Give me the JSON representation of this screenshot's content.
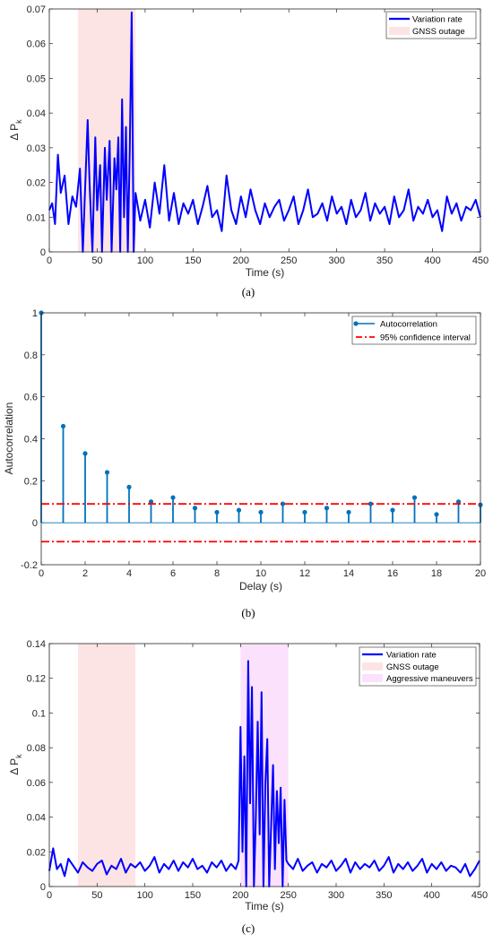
{
  "colors": {
    "line": "#0000ff",
    "stem": "#0072bd",
    "conf": "#ff0000",
    "gnss_patch": "#fde4e4",
    "aggr_patch": "#fbe1fb",
    "axis": "#262626"
  },
  "chart_data": [
    {
      "id": "a",
      "type": "line",
      "panel_label": "(a)",
      "xlabel": "Time (s)",
      "ylabel_main": "Δ P",
      "ylabel_sub": "k",
      "xlim": [
        0,
        450
      ],
      "ylim": [
        0,
        0.07
      ],
      "xticks": [
        0,
        50,
        100,
        150,
        200,
        250,
        300,
        350,
        400,
        450
      ],
      "yticks": [
        0,
        0.01,
        0.02,
        0.03,
        0.04,
        0.05,
        0.06,
        0.07
      ],
      "yticklabels": [
        "0",
        "0.01",
        "0.02",
        "0.03",
        "0.04",
        "0.05",
        "0.06",
        "0.07"
      ],
      "legend_position": "top-right",
      "shaded_regions": [
        {
          "name": "GNSS outage",
          "x": [
            30,
            90
          ],
          "color_key": "gnss_patch"
        }
      ],
      "series": [
        {
          "name": "Variation rate",
          "x": [
            0,
            3,
            6,
            9,
            12,
            16,
            20,
            24,
            28,
            32,
            35,
            37,
            40,
            42,
            45,
            48,
            50,
            53,
            55,
            58,
            60,
            63,
            65,
            68,
            70,
            72,
            74,
            76,
            78,
            80,
            82,
            84,
            86,
            88,
            90,
            95,
            100,
            105,
            110,
            115,
            120,
            125,
            130,
            135,
            140,
            145,
            150,
            155,
            160,
            165,
            170,
            175,
            180,
            185,
            190,
            195,
            200,
            205,
            210,
            215,
            220,
            225,
            230,
            235,
            240,
            245,
            250,
            255,
            260,
            265,
            270,
            275,
            280,
            285,
            290,
            295,
            300,
            305,
            310,
            315,
            320,
            325,
            330,
            335,
            340,
            345,
            350,
            355,
            360,
            365,
            370,
            375,
            380,
            385,
            390,
            395,
            400,
            405,
            410,
            415,
            420,
            425,
            430,
            435,
            440,
            445,
            450
          ],
          "values": [
            0.012,
            0.014,
            0.008,
            0.028,
            0.017,
            0.022,
            0.008,
            0.016,
            0.013,
            0.024,
            0.0,
            0.015,
            0.038,
            0.02,
            0.0,
            0.033,
            0.012,
            0.025,
            0.0,
            0.03,
            0.015,
            0.032,
            0.0,
            0.027,
            0.018,
            0.033,
            0.0,
            0.044,
            0.01,
            0.036,
            0.0,
            0.03,
            0.069,
            0.0,
            0.017,
            0.009,
            0.015,
            0.007,
            0.02,
            0.011,
            0.025,
            0.009,
            0.017,
            0.008,
            0.014,
            0.011,
            0.015,
            0.008,
            0.013,
            0.019,
            0.01,
            0.012,
            0.006,
            0.022,
            0.012,
            0.008,
            0.016,
            0.01,
            0.018,
            0.012,
            0.008,
            0.014,
            0.01,
            0.013,
            0.015,
            0.009,
            0.012,
            0.016,
            0.008,
            0.012,
            0.018,
            0.01,
            0.011,
            0.014,
            0.009,
            0.016,
            0.011,
            0.013,
            0.008,
            0.015,
            0.01,
            0.012,
            0.017,
            0.009,
            0.014,
            0.011,
            0.013,
            0.008,
            0.016,
            0.01,
            0.012,
            0.018,
            0.009,
            0.013,
            0.011,
            0.015,
            0.01,
            0.012,
            0.006,
            0.016,
            0.011,
            0.014,
            0.009,
            0.013,
            0.012,
            0.015,
            0.01
          ]
        }
      ]
    },
    {
      "id": "b",
      "type": "stem",
      "panel_label": "(b)",
      "xlabel": "Delay (s)",
      "ylabel": "Autocorrelation",
      "xlim": [
        0,
        20
      ],
      "ylim": [
        -0.2,
        1
      ],
      "xticks": [
        0,
        2,
        4,
        6,
        8,
        10,
        12,
        14,
        16,
        18,
        20
      ],
      "yticks": [
        -0.2,
        0,
        0.2,
        0.4,
        0.6,
        0.8,
        1
      ],
      "yticklabels": [
        "-0.2",
        "0",
        "0.2",
        "0.4",
        "0.6",
        "0.8",
        "1"
      ],
      "legend_position": "top-right",
      "series": [
        {
          "name": "Autocorrelation",
          "x": [
            0,
            1,
            2,
            3,
            4,
            5,
            6,
            7,
            8,
            9,
            10,
            11,
            12,
            13,
            14,
            15,
            16,
            17,
            18,
            19,
            20
          ],
          "values": [
            1.0,
            0.46,
            0.33,
            0.24,
            0.17,
            0.1,
            0.12,
            0.07,
            0.05,
            0.06,
            0.05,
            0.09,
            0.05,
            0.07,
            0.05,
            0.09,
            0.06,
            0.12,
            0.04,
            0.1,
            0.085
          ]
        }
      ],
      "confidence_interval": {
        "name": "95% confidence interval",
        "bounds": [
          0.09,
          -0.09
        ]
      }
    },
    {
      "id": "c",
      "type": "line",
      "panel_label": "(c)",
      "xlabel": "Time (s)",
      "ylabel_main": "Δ P",
      "ylabel_sub": "k",
      "xlim": [
        0,
        450
      ],
      "ylim": [
        0,
        0.14
      ],
      "xticks": [
        0,
        50,
        100,
        150,
        200,
        250,
        300,
        350,
        400,
        450
      ],
      "yticks": [
        0,
        0.02,
        0.04,
        0.06,
        0.08,
        0.1,
        0.12,
        0.14
      ],
      "yticklabels": [
        "0",
        "0.02",
        "0.04",
        "0.06",
        "0.08",
        "0.1",
        "0.12",
        "0.14"
      ],
      "legend_position": "top-right",
      "shaded_regions": [
        {
          "name": "GNSS outage",
          "x": [
            30,
            90
          ],
          "color_key": "gnss_patch"
        },
        {
          "name": "Aggressive maneuvers",
          "x": [
            200,
            250
          ],
          "color_key": "aggr_patch"
        }
      ],
      "series": [
        {
          "name": "Variation rate",
          "x": [
            0,
            4,
            8,
            12,
            16,
            20,
            25,
            30,
            35,
            40,
            45,
            50,
            55,
            60,
            65,
            70,
            75,
            80,
            85,
            90,
            95,
            100,
            105,
            110,
            115,
            120,
            125,
            130,
            135,
            140,
            145,
            150,
            155,
            160,
            165,
            170,
            175,
            180,
            185,
            190,
            195,
            198,
            200,
            202,
            204,
            206,
            208,
            210,
            212,
            214,
            216,
            218,
            220,
            222,
            224,
            226,
            228,
            230,
            232,
            234,
            236,
            238,
            240,
            242,
            244,
            246,
            248,
            250,
            255,
            260,
            265,
            270,
            275,
            280,
            285,
            290,
            295,
            300,
            305,
            310,
            315,
            320,
            325,
            330,
            335,
            340,
            345,
            350,
            355,
            360,
            365,
            370,
            375,
            380,
            385,
            390,
            395,
            400,
            405,
            410,
            415,
            420,
            425,
            430,
            435,
            440,
            445,
            450
          ],
          "values": [
            0.009,
            0.022,
            0.01,
            0.013,
            0.006,
            0.016,
            0.012,
            0.008,
            0.014,
            0.011,
            0.009,
            0.013,
            0.015,
            0.007,
            0.012,
            0.01,
            0.016,
            0.008,
            0.013,
            0.011,
            0.014,
            0.009,
            0.012,
            0.017,
            0.008,
            0.013,
            0.01,
            0.015,
            0.009,
            0.014,
            0.011,
            0.016,
            0.01,
            0.012,
            0.008,
            0.014,
            0.011,
            0.015,
            0.009,
            0.013,
            0.01,
            0.015,
            0.092,
            0.02,
            0.075,
            0.0,
            0.13,
            0.048,
            0.115,
            0.0,
            0.04,
            0.095,
            0.03,
            0.112,
            0.0,
            0.06,
            0.085,
            0.0,
            0.035,
            0.07,
            0.01,
            0.055,
            0.025,
            0.057,
            0.0,
            0.05,
            0.015,
            0.013,
            0.01,
            0.016,
            0.009,
            0.012,
            0.014,
            0.008,
            0.013,
            0.011,
            0.015,
            0.009,
            0.012,
            0.016,
            0.008,
            0.014,
            0.01,
            0.013,
            0.011,
            0.015,
            0.009,
            0.012,
            0.017,
            0.008,
            0.013,
            0.01,
            0.014,
            0.009,
            0.012,
            0.016,
            0.008,
            0.013,
            0.01,
            0.014,
            0.009,
            0.012,
            0.011,
            0.008,
            0.013,
            0.006,
            0.01,
            0.015
          ]
        }
      ]
    }
  ]
}
